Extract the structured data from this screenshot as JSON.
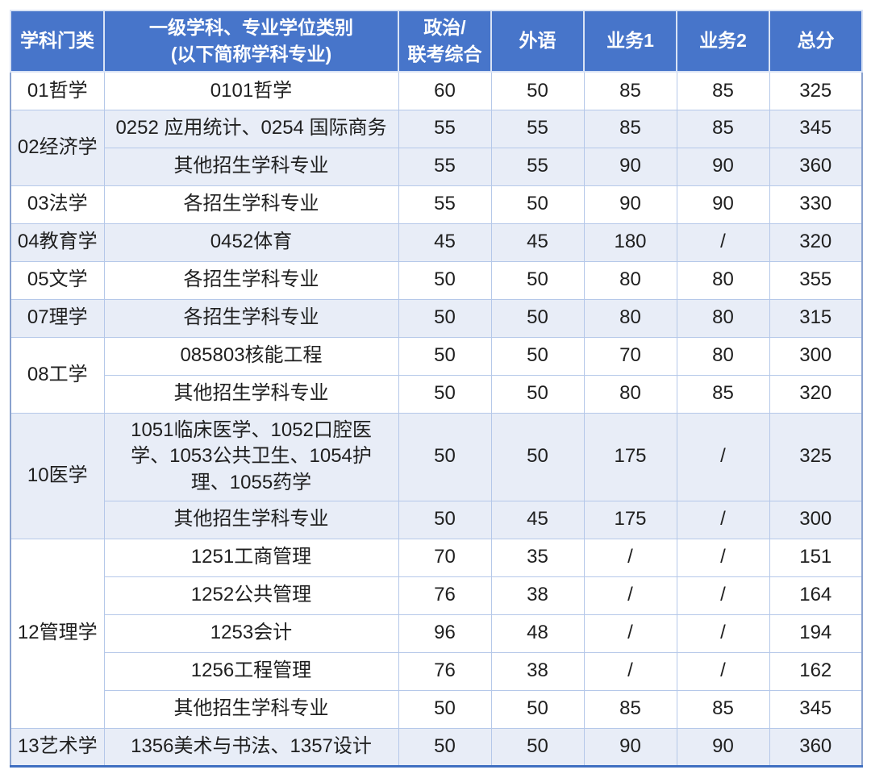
{
  "header": {
    "col1": "学科门类",
    "col2_line1": "一级学科、专业学位类别",
    "col2_line2": "(以下简称学科专业)",
    "col3_line1": "政治/",
    "col3_line2": "联考综合",
    "col4": "外语",
    "col5": "业务1",
    "col6": "业务2",
    "col7": "总分"
  },
  "groups": [
    {
      "category": "01哲学",
      "rows": [
        {
          "major": "0101哲学",
          "scores": [
            "60",
            "50",
            "85",
            "85",
            "325"
          ]
        }
      ]
    },
    {
      "category": "02经济学",
      "rows": [
        {
          "major": "0252 应用统计、0254 国际商务",
          "scores": [
            "55",
            "55",
            "85",
            "85",
            "345"
          ]
        },
        {
          "major": "其他招生学科专业",
          "scores": [
            "55",
            "55",
            "90",
            "90",
            "360"
          ]
        }
      ]
    },
    {
      "category": "03法学",
      "rows": [
        {
          "major": "各招生学科专业",
          "scores": [
            "55",
            "50",
            "90",
            "90",
            "330"
          ]
        }
      ]
    },
    {
      "category": "04教育学",
      "rows": [
        {
          "major": "0452体育",
          "scores": [
            "45",
            "45",
            "180",
            "/",
            "320"
          ]
        }
      ]
    },
    {
      "category": "05文学",
      "rows": [
        {
          "major": "各招生学科专业",
          "scores": [
            "50",
            "50",
            "80",
            "80",
            "355"
          ]
        }
      ]
    },
    {
      "category": "07理学",
      "rows": [
        {
          "major": "各招生学科专业",
          "scores": [
            "50",
            "50",
            "80",
            "80",
            "315"
          ]
        }
      ]
    },
    {
      "category": "08工学",
      "rows": [
        {
          "major": "085803核能工程",
          "scores": [
            "50",
            "50",
            "70",
            "80",
            "300"
          ]
        },
        {
          "major": "其他招生学科专业",
          "scores": [
            "50",
            "50",
            "80",
            "85",
            "320"
          ]
        }
      ]
    },
    {
      "category": "10医学",
      "rows": [
        {
          "major": "1051临床医学、1052口腔医学、1053公共卫生、1054护理、1055药学",
          "scores": [
            "50",
            "50",
            "175",
            "/",
            "325"
          ]
        },
        {
          "major": "其他招生学科专业",
          "scores": [
            "50",
            "45",
            "175",
            "/",
            "300"
          ]
        }
      ]
    },
    {
      "category": "12管理学",
      "rows": [
        {
          "major": "1251工商管理",
          "scores": [
            "70",
            "35",
            "/",
            "/",
            "151"
          ]
        },
        {
          "major": "1252公共管理",
          "scores": [
            "76",
            "38",
            "/",
            "/",
            "164"
          ]
        },
        {
          "major": "1253会计",
          "scores": [
            "96",
            "48",
            "/",
            "/",
            "194"
          ]
        },
        {
          "major": "1256工程管理",
          "scores": [
            "76",
            "38",
            "/",
            "/",
            "162"
          ]
        },
        {
          "major": "其他招生学科专业",
          "scores": [
            "50",
            "50",
            "85",
            "85",
            "345"
          ]
        }
      ]
    },
    {
      "category": "13艺术学",
      "rows": [
        {
          "major": "1356美术与书法、1357设计",
          "scores": [
            "50",
            "50",
            "90",
            "90",
            "360"
          ]
        }
      ]
    }
  ],
  "colors": {
    "header_bg": "#4775CA",
    "header_text": "#FFFFFF",
    "shaded_row_bg": "#E8EDF7",
    "grid_line": "#B5C8E9",
    "outer_border": "#8AA2CE",
    "bottom_border": "#3F6FC1",
    "body_text": "#1F1F1F"
  },
  "chart_data": {
    "type": "table",
    "columns": [
      "学科门类",
      "一级学科、专业学位类别(以下简称学科专业)",
      "政治/联考综合",
      "外语",
      "业务1",
      "业务2",
      "总分"
    ],
    "rows": [
      [
        "01哲学",
        "0101哲学",
        "60",
        "50",
        "85",
        "85",
        "325"
      ],
      [
        "02经济学",
        "0252 应用统计、0254 国际商务",
        "55",
        "55",
        "85",
        "85",
        "345"
      ],
      [
        "02经济学",
        "其他招生学科专业",
        "55",
        "55",
        "90",
        "90",
        "360"
      ],
      [
        "03法学",
        "各招生学科专业",
        "55",
        "50",
        "90",
        "90",
        "330"
      ],
      [
        "04教育学",
        "0452体育",
        "45",
        "45",
        "180",
        "/",
        "320"
      ],
      [
        "05文学",
        "各招生学科专业",
        "50",
        "50",
        "80",
        "80",
        "355"
      ],
      [
        "07理学",
        "各招生学科专业",
        "50",
        "50",
        "80",
        "80",
        "315"
      ],
      [
        "08工学",
        "085803核能工程",
        "50",
        "50",
        "70",
        "80",
        "300"
      ],
      [
        "08工学",
        "其他招生学科专业",
        "50",
        "50",
        "80",
        "85",
        "320"
      ],
      [
        "10医学",
        "1051临床医学、1052口腔医学、1053公共卫生、1054护理、1055药学",
        "50",
        "50",
        "175",
        "/",
        "325"
      ],
      [
        "10医学",
        "其他招生学科专业",
        "50",
        "45",
        "175",
        "/",
        "300"
      ],
      [
        "12管理学",
        "1251工商管理",
        "70",
        "35",
        "/",
        "/",
        "151"
      ],
      [
        "12管理学",
        "1252公共管理",
        "76",
        "38",
        "/",
        "/",
        "164"
      ],
      [
        "12管理学",
        "1253会计",
        "96",
        "48",
        "/",
        "/",
        "194"
      ],
      [
        "12管理学",
        "1256工程管理",
        "76",
        "38",
        "/",
        "/",
        "162"
      ],
      [
        "12管理学",
        "其他招生学科专业",
        "50",
        "50",
        "85",
        "85",
        "345"
      ],
      [
        "13艺术学",
        "1356美术与书法、1357设计",
        "50",
        "50",
        "90",
        "90",
        "360"
      ]
    ]
  }
}
